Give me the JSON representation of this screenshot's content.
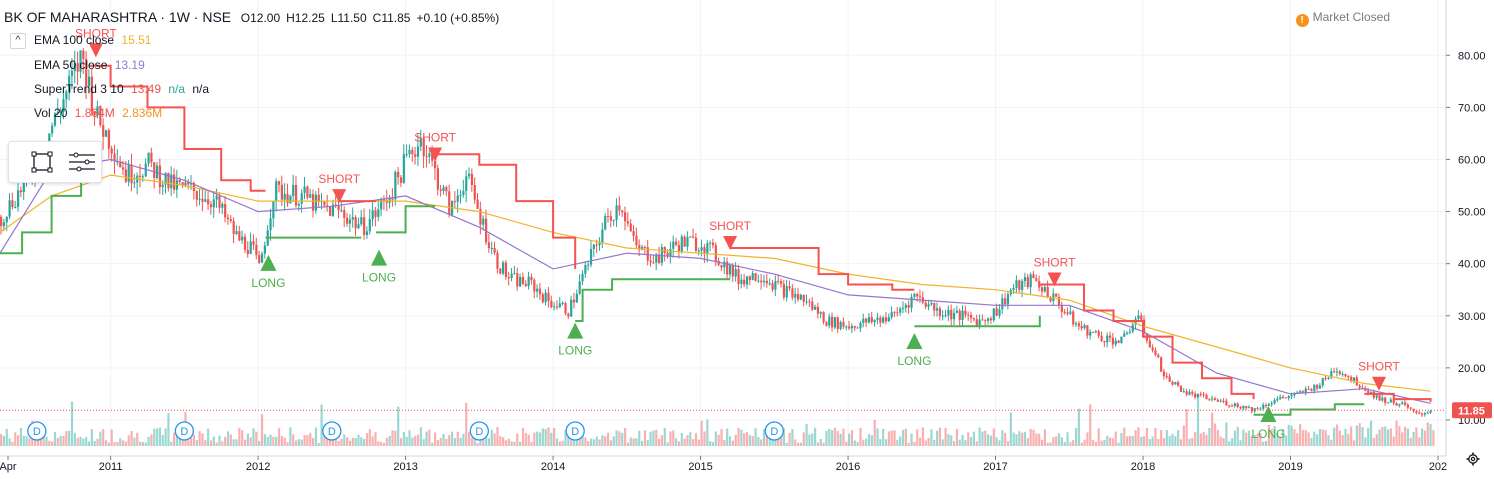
{
  "header": {
    "symbol": "BK OF MAHARASHTRA · 1W · NSE",
    "open": "O12.00",
    "high": "H12.25",
    "low": "L11.50",
    "close": "C11.85",
    "change": "+0.10 (+0.85%)",
    "market_status": "Market Closed",
    "collapse_label": "^"
  },
  "indicators": [
    {
      "label": "EMA 100 close",
      "value": "15.51",
      "color": "#f0b429"
    },
    {
      "label": "EMA 50 close",
      "value": "13.19",
      "color": "#9575cd"
    },
    {
      "label": "SuperTrend 3 10",
      "value": "13.49",
      "value2": "n/a",
      "value3": "n/a",
      "color": "#ef5350",
      "color2": "#26a69a"
    },
    {
      "label": "Vol 20",
      "value": "1.864M",
      "value2": "2.836M",
      "color": "#ef5350",
      "color2": "#f7931a"
    }
  ],
  "colors": {
    "up": "#26a69a",
    "down": "#ef5350",
    "ema100": "#f0b429",
    "ema50": "#9575cd",
    "st_up": "#4caf50",
    "st_down": "#f55252",
    "last_price_bg": "#ef5350",
    "long_marker": "#4caf50",
    "short_marker": "#f55252",
    "dividend": "#2196f3"
  },
  "icons": [
    "market-closed-icon",
    "rectangle-tool-icon",
    "lines-tool-icon",
    "gear-icon"
  ],
  "chart_data": {
    "type": "line",
    "title": "BK OF MAHARASHTRA · 1W · NSE",
    "x_axis_labels": [
      "Apr",
      "2011",
      "2012",
      "2013",
      "2014",
      "2015",
      "2016",
      "2017",
      "2018",
      "2019",
      "202"
    ],
    "y_axis_labels": [
      "10.00",
      "20.00",
      "30.00",
      "40.00",
      "50.00",
      "60.00",
      "70.00",
      "80.00"
    ],
    "ylim": [
      5,
      86
    ],
    "x_unit": "year",
    "last_price": "11.85",
    "series": [
      {
        "name": "price",
        "points": [
          [
            2010.25,
            49
          ],
          [
            2010.45,
            57
          ],
          [
            2010.65,
            70
          ],
          [
            2010.8,
            80
          ],
          [
            2010.9,
            68
          ],
          [
            2011.0,
            63
          ],
          [
            2011.1,
            57
          ],
          [
            2011.25,
            59
          ],
          [
            2011.4,
            55
          ],
          [
            2011.55,
            54
          ],
          [
            2011.7,
            52
          ],
          [
            2011.85,
            45
          ],
          [
            2011.95,
            43
          ],
          [
            2012.0,
            39
          ],
          [
            2012.1,
            54
          ],
          [
            2012.3,
            53
          ],
          [
            2012.4,
            51
          ],
          [
            2012.55,
            50
          ],
          [
            2012.7,
            47
          ],
          [
            2012.8,
            50
          ],
          [
            2012.9,
            54
          ],
          [
            2013.0,
            60
          ],
          [
            2013.1,
            64
          ],
          [
            2013.2,
            57
          ],
          [
            2013.3,
            50
          ],
          [
            2013.4,
            57
          ],
          [
            2013.5,
            49
          ],
          [
            2013.6,
            41
          ],
          [
            2013.7,
            37
          ],
          [
            2013.85,
            36
          ],
          [
            2013.95,
            33
          ],
          [
            2014.1,
            31
          ],
          [
            2014.2,
            38
          ],
          [
            2014.35,
            48
          ],
          [
            2014.45,
            52
          ],
          [
            2014.55,
            43
          ],
          [
            2014.7,
            41
          ],
          [
            2014.85,
            44
          ],
          [
            2015.0,
            44
          ],
          [
            2015.15,
            40
          ],
          [
            2015.25,
            37
          ],
          [
            2015.4,
            38
          ],
          [
            2015.55,
            35
          ],
          [
            2015.7,
            33
          ],
          [
            2015.85,
            29
          ],
          [
            2016.0,
            28
          ],
          [
            2016.15,
            29
          ],
          [
            2016.3,
            30
          ],
          [
            2016.45,
            34
          ],
          [
            2016.6,
            31
          ],
          [
            2016.75,
            30
          ],
          [
            2016.9,
            29
          ],
          [
            2017.0,
            31
          ],
          [
            2017.1,
            35
          ],
          [
            2017.25,
            37
          ],
          [
            2017.4,
            33
          ],
          [
            2017.55,
            28
          ],
          [
            2017.7,
            26
          ],
          [
            2017.85,
            25
          ],
          [
            2017.95,
            30
          ],
          [
            2018.05,
            24
          ],
          [
            2018.15,
            18
          ],
          [
            2018.3,
            15
          ],
          [
            2018.45,
            14
          ],
          [
            2018.6,
            13
          ],
          [
            2018.75,
            12
          ],
          [
            2018.9,
            14
          ],
          [
            2019.05,
            15
          ],
          [
            2019.2,
            17
          ],
          [
            2019.3,
            20
          ],
          [
            2019.45,
            17
          ],
          [
            2019.6,
            14
          ],
          [
            2019.75,
            13
          ],
          [
            2019.85,
            11
          ],
          [
            2019.95,
            11.85
          ]
        ]
      },
      {
        "name": "EMA 100 close",
        "points": [
          [
            2010.25,
            46
          ],
          [
            2010.6,
            53
          ],
          [
            2011.0,
            57
          ],
          [
            2011.5,
            55
          ],
          [
            2012.0,
            52
          ],
          [
            2012.5,
            52
          ],
          [
            2013.0,
            52
          ],
          [
            2013.5,
            50
          ],
          [
            2014.0,
            46
          ],
          [
            2014.5,
            43
          ],
          [
            2015.0,
            42
          ],
          [
            2015.5,
            41
          ],
          [
            2016.0,
            38
          ],
          [
            2016.5,
            36
          ],
          [
            2017.0,
            35
          ],
          [
            2017.5,
            33
          ],
          [
            2018.0,
            28
          ],
          [
            2018.5,
            24
          ],
          [
            2019.0,
            20
          ],
          [
            2019.5,
            17
          ],
          [
            2019.95,
            15.51
          ]
        ]
      },
      {
        "name": "EMA 50 close",
        "points": [
          [
            2010.25,
            42
          ],
          [
            2010.6,
            58
          ],
          [
            2011.0,
            60
          ],
          [
            2011.5,
            56
          ],
          [
            2012.0,
            50
          ],
          [
            2012.5,
            51
          ],
          [
            2013.0,
            53
          ],
          [
            2013.5,
            47
          ],
          [
            2014.0,
            39
          ],
          [
            2014.5,
            42
          ],
          [
            2015.0,
            41
          ],
          [
            2015.5,
            38
          ],
          [
            2016.0,
            34
          ],
          [
            2016.5,
            33
          ],
          [
            2017.0,
            32
          ],
          [
            2017.5,
            32
          ],
          [
            2018.0,
            27
          ],
          [
            2018.5,
            19
          ],
          [
            2019.0,
            15
          ],
          [
            2019.5,
            16
          ],
          [
            2019.95,
            13.19
          ]
        ]
      },
      {
        "name": "SuperTrend 3 10",
        "segments": [
          {
            "trend": "up",
            "points": [
              [
                2010.25,
                42
              ],
              [
                2010.4,
                46
              ],
              [
                2010.6,
                53
              ],
              [
                2010.8,
                62
              ]
            ]
          },
          {
            "trend": "down",
            "points": [
              [
                2010.85,
                78
              ],
              [
                2011.0,
                74
              ],
              [
                2011.25,
                70
              ],
              [
                2011.5,
                62
              ],
              [
                2011.75,
                56
              ],
              [
                2011.95,
                54
              ],
              [
                2012.05,
                54
              ]
            ]
          },
          {
            "trend": "up",
            "points": [
              [
                2012.05,
                45
              ],
              [
                2012.45,
                45
              ],
              [
                2012.7,
                45
              ]
            ]
          },
          {
            "trend": "down",
            "points": [
              [
                2012.55,
                52
              ],
              [
                2012.8,
                52
              ]
            ]
          },
          {
            "trend": "up",
            "points": [
              [
                2012.8,
                46
              ],
              [
                2013.0,
                51
              ],
              [
                2013.2,
                51
              ]
            ]
          },
          {
            "trend": "down",
            "points": [
              [
                2013.2,
                61
              ],
              [
                2013.5,
                59
              ],
              [
                2013.75,
                52
              ],
              [
                2014.0,
                45
              ],
              [
                2014.15,
                39
              ]
            ]
          },
          {
            "trend": "up",
            "points": [
              [
                2014.15,
                29
              ],
              [
                2014.2,
                35
              ],
              [
                2014.4,
                37
              ],
              [
                2015.0,
                37
              ],
              [
                2015.2,
                37
              ]
            ]
          },
          {
            "trend": "down",
            "points": [
              [
                2015.2,
                43
              ],
              [
                2015.6,
                43
              ],
              [
                2015.8,
                38
              ],
              [
                2016.0,
                36
              ],
              [
                2016.3,
                35
              ],
              [
                2016.45,
                35
              ]
            ]
          },
          {
            "trend": "up",
            "points": [
              [
                2016.45,
                28
              ],
              [
                2016.9,
                28
              ],
              [
                2017.1,
                28
              ],
              [
                2017.3,
                30
              ]
            ]
          },
          {
            "trend": "down",
            "points": [
              [
                2017.3,
                36
              ],
              [
                2017.6,
                31
              ],
              [
                2017.8,
                29
              ],
              [
                2018.0,
                26
              ],
              [
                2018.2,
                21
              ],
              [
                2018.4,
                18
              ],
              [
                2018.6,
                15
              ],
              [
                2018.75,
                14
              ]
            ]
          },
          {
            "trend": "up",
            "points": [
              [
                2018.75,
                11
              ],
              [
                2019.0,
                12
              ],
              [
                2019.3,
                13
              ],
              [
                2019.5,
                13
              ]
            ]
          },
          {
            "trend": "down",
            "points": [
              [
                2019.5,
                15
              ],
              [
                2019.7,
                14
              ],
              [
                2019.95,
                13.49
              ]
            ]
          }
        ]
      }
    ],
    "annotations": [
      {
        "text": "SHORT",
        "x": 2010.9,
        "y": 80,
        "type": "short"
      },
      {
        "text": "LONG",
        "x": 2012.07,
        "y": 39,
        "type": "long"
      },
      {
        "text": "SHORT",
        "x": 2012.55,
        "y": 52,
        "type": "short"
      },
      {
        "text": "LONG",
        "x": 2012.82,
        "y": 40,
        "type": "long"
      },
      {
        "text": "SHORT",
        "x": 2013.2,
        "y": 60,
        "type": "short"
      },
      {
        "text": "LONG",
        "x": 2014.15,
        "y": 26,
        "type": "long"
      },
      {
        "text": "SHORT",
        "x": 2015.2,
        "y": 43,
        "type": "short"
      },
      {
        "text": "LONG",
        "x": 2016.45,
        "y": 24,
        "type": "long"
      },
      {
        "text": "SHORT",
        "x": 2017.4,
        "y": 36,
        "type": "short"
      },
      {
        "text": "LONG",
        "x": 2018.85,
        "y": 10,
        "type": "long"
      },
      {
        "text": "SHORT",
        "x": 2019.6,
        "y": 16,
        "type": "short"
      }
    ],
    "dividend_markers": [
      {
        "label": "D",
        "x": 2010.5
      },
      {
        "label": "D",
        "x": 2011.5
      },
      {
        "label": "D",
        "x": 2012.5
      },
      {
        "label": "D",
        "x": 2013.5
      },
      {
        "label": "D",
        "x": 2014.15
      },
      {
        "label": "D",
        "x": 2015.5
      }
    ],
    "grid": true,
    "legend": "top-left"
  }
}
